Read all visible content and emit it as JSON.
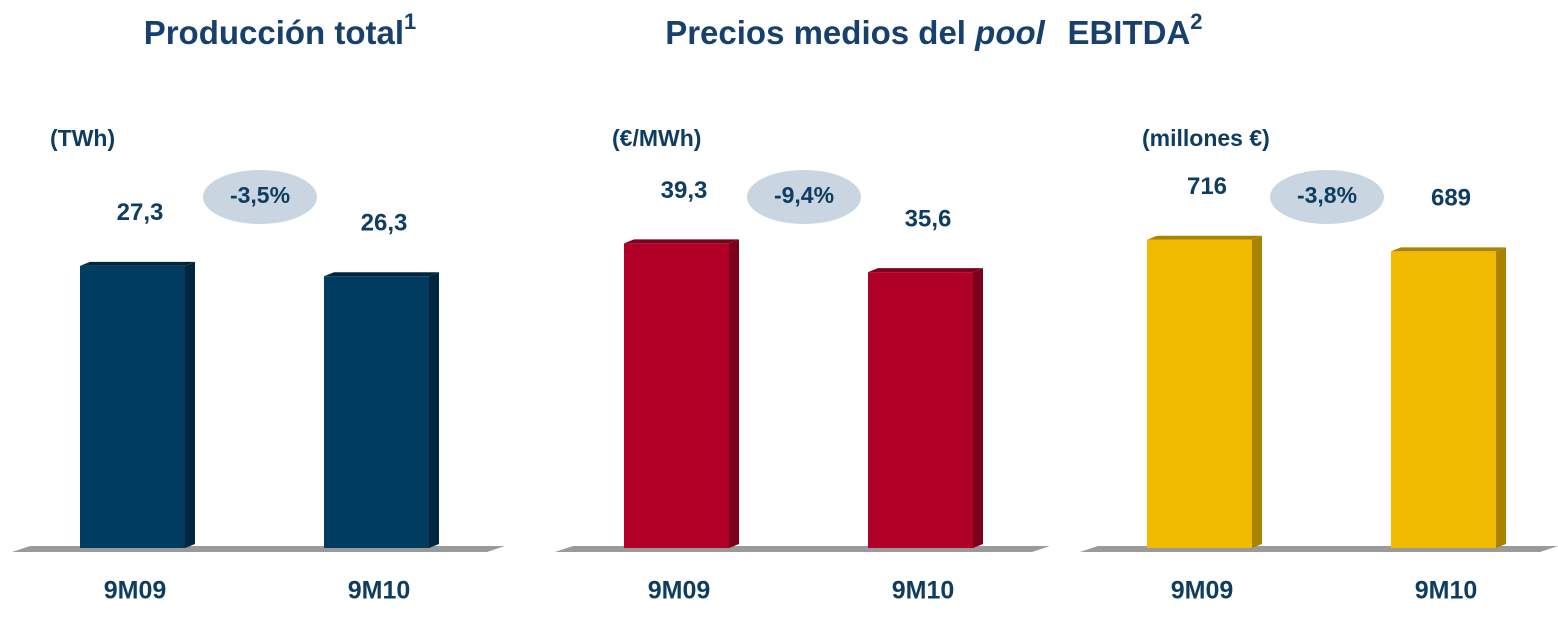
{
  "chart_data": [
    {
      "type": "bar",
      "title": "Producción total",
      "title_note": "1",
      "unit": "(TWh)",
      "categories": [
        "9M09",
        "9M10"
      ],
      "values": [
        27.3,
        26.3
      ],
      "value_labels": [
        "27,3",
        "26,3"
      ],
      "change": "-3,5%",
      "color": "#003c5f",
      "side_color": "#00263f",
      "ylim": [
        0,
        30
      ]
    },
    {
      "type": "bar",
      "title": "Precios medios del",
      "title_emphasis": "pool",
      "unit": "(€/MWh)",
      "categories": [
        "9M09",
        "9M10"
      ],
      "values": [
        39.3,
        35.6
      ],
      "value_labels": [
        "39,3",
        "35,6"
      ],
      "change": "-9,4%",
      "color": "#b10027",
      "side_color": "#7c001c",
      "ylim": [
        0,
        40
      ]
    },
    {
      "type": "bar",
      "title": "EBITDA",
      "title_note": "2",
      "unit": "(millones €)",
      "categories": [
        "9M09",
        "9M10"
      ],
      "values": [
        716,
        689
      ],
      "value_labels": [
        "716",
        "689"
      ],
      "change": "-3,8%",
      "color": "#f0bb00",
      "side_color": "#a98300",
      "ylim": [
        0,
        720
      ]
    }
  ]
}
